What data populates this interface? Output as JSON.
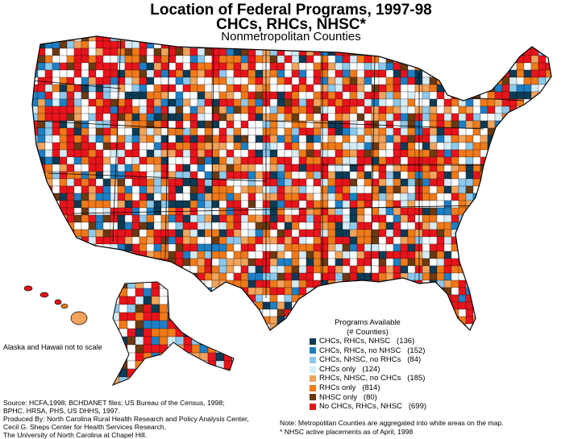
{
  "title": {
    "line1": "Location of Federal Programs, 1997-98",
    "line2": "CHCs, RHCs, NHSC*",
    "subtitle": "Nonmetropolitan Counties"
  },
  "alaska_hawaii_note": "Alaska and Hawaii not to scale",
  "legend": {
    "title_line1": "Programs Available",
    "title_line2": "(# Counties)",
    "items": [
      {
        "label": "CHCs, RHCs, NHSC",
        "count": "(136)",
        "color": "#0d3b55"
      },
      {
        "label": "CHCs, RHCs, no NHSC",
        "count": "(152)",
        "color": "#1f7fc4"
      },
      {
        "label": "CHCs, NHSC, no RHCs",
        "count": "(84)",
        "color": "#8ec9ec"
      },
      {
        "label": "CHCs only",
        "count": "(124)",
        "color": "#d4ecf8"
      },
      {
        "label": "RHCs, NHSC, no CHCs",
        "count": "(185)",
        "color": "#f2a35c"
      },
      {
        "label": "RHCs only",
        "count": "(814)",
        "color": "#f07a1a"
      },
      {
        "label": "NHSC only",
        "count": "(80)",
        "color": "#6b3a12"
      },
      {
        "label": "No CHCs, RHCs, NHSC",
        "count": "(699)",
        "color": "#e8141c"
      }
    ]
  },
  "source_lines": [
    "Source:  HCFA,1998; BCHDANET files;  US Bureau of the Census, 1998;",
    "BPHC, HRSA, PHS, US DHHS, 1997.",
    "Produced By:  North Carolina Rural Health Research and Policy Analysis Center,",
    "Cecil G. Sheps Center for Health Services Research,",
    "The University of North Carolina at Chapel Hill."
  ],
  "notes": [
    "Note:  Metropolitan Counties are aggregated into white areas on the map.",
    "* NHSC active placements as of April, 1998"
  ],
  "colors": {
    "metro": "#ffffff",
    "outline": "#000000"
  }
}
